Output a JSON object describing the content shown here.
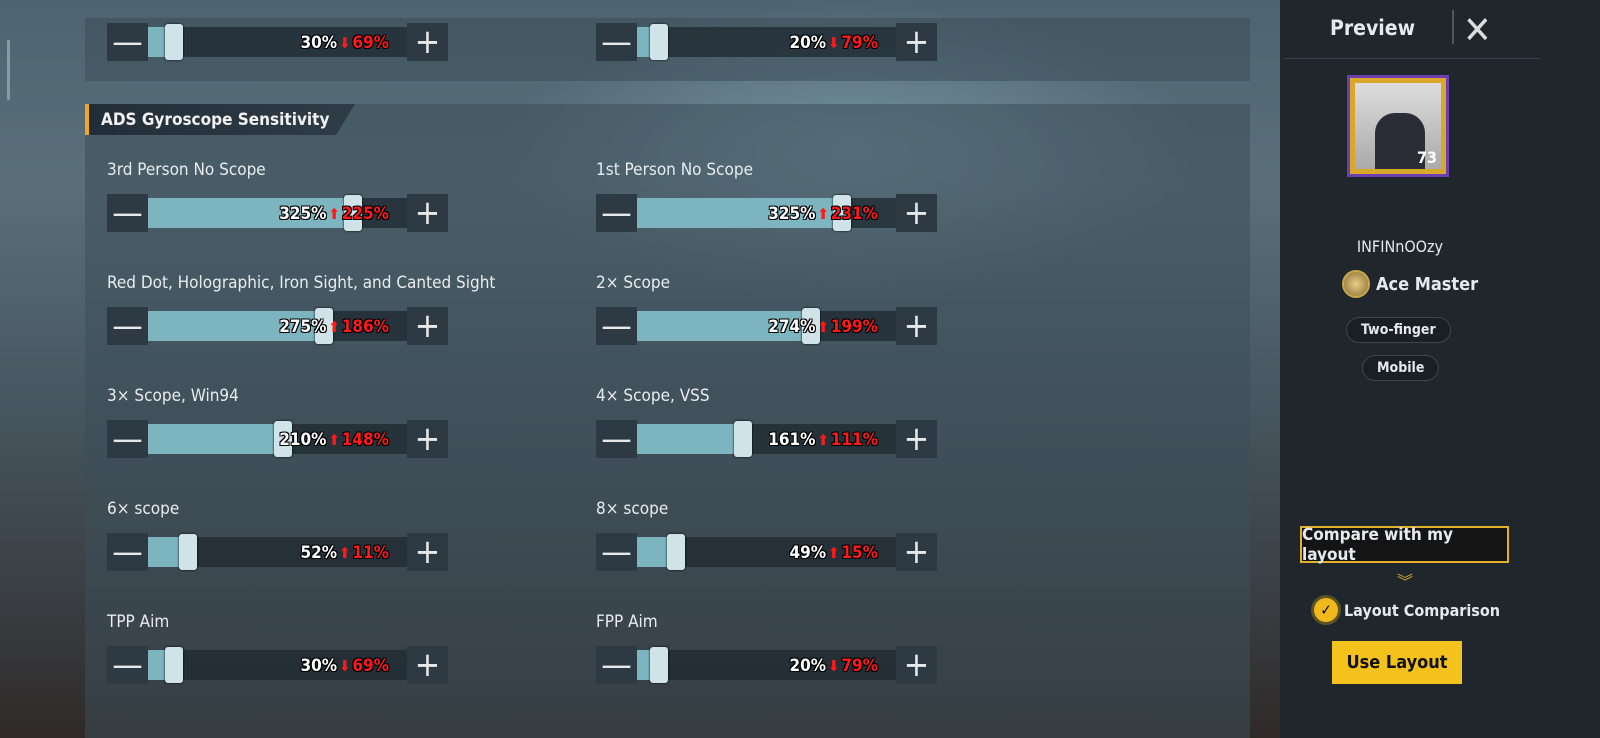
{
  "top_row": [
    {
      "value": "30%",
      "dir": "down",
      "delta": "69%",
      "level": 0.1
    },
    {
      "value": "20%",
      "dir": "down",
      "delta": "79%",
      "level": 0.085
    }
  ],
  "section_title": "ADS Gyroscope Sensitivity",
  "sliders": [
    {
      "label": "3rd Person No Scope",
      "value": "325%",
      "dir": "up",
      "delta": "225%",
      "level": 0.79
    },
    {
      "label": "1st Person No Scope",
      "value": "325%",
      "dir": "up",
      "delta": "231%",
      "level": 0.79
    },
    {
      "label": "Red Dot, Holographic, Iron Sight, and Canted Sight",
      "value": "275%",
      "dir": "up",
      "delta": "186%",
      "level": 0.68
    },
    {
      "label": "2× Scope",
      "value": "274%",
      "dir": "up",
      "delta": "199%",
      "level": 0.67
    },
    {
      "label": "3× Scope, Win94",
      "value": "210%",
      "dir": "up",
      "delta": "148%",
      "level": 0.52
    },
    {
      "label": "4× Scope, VSS",
      "value": "161%",
      "dir": "up",
      "delta": "111%",
      "level": 0.41
    },
    {
      "label": "6× scope",
      "value": "52%",
      "dir": "up",
      "delta": "11%",
      "level": 0.155
    },
    {
      "label": "8× scope",
      "value": "49%",
      "dir": "up",
      "delta": "15%",
      "level": 0.15
    },
    {
      "label": "TPP Aim",
      "value": "30%",
      "dir": "down",
      "delta": "69%",
      "level": 0.1
    },
    {
      "label": "FPP Aim",
      "value": "20%",
      "dir": "down",
      "delta": "79%",
      "level": 0.085
    }
  ],
  "sidebar": {
    "title": "Preview",
    "player_name": "INFINnOOzy",
    "level": "73",
    "rank": "Ace Master",
    "chips": [
      "Two-finger",
      "Mobile"
    ],
    "compare_label": "Compare with my layout",
    "layout_comparison_label": "Layout Comparison",
    "use_layout_label": "Use Layout"
  },
  "colors": {
    "accent": "#f4c21c",
    "fill": "#7cb4c0",
    "delta": "#ff1a1a"
  }
}
